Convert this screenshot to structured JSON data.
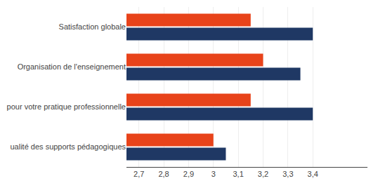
{
  "chart_data": {
    "type": "bar",
    "orientation": "horizontal",
    "categories": [
      "Satisfaction globale",
      "Organisation de l'enseignement",
      "pour votre pratique professionnelle",
      "ualité des supports pédagogiques"
    ],
    "series": [
      {
        "color": "#E8431A",
        "values": [
          3.15,
          3.2,
          3.15,
          3.0
        ]
      },
      {
        "color": "#1F3864",
        "values": [
          3.4,
          3.35,
          3.4,
          3.05
        ]
      }
    ],
    "xlim": [
      2.65,
      3.62
    ],
    "xticks": [
      {
        "value": 2.7,
        "label": "2,7"
      },
      {
        "value": 2.8,
        "label": "2,8"
      },
      {
        "value": 2.9,
        "label": "2,9"
      },
      3,
      {
        "value": 3.1,
        "label": "3,1"
      },
      {
        "value": 3.2,
        "label": "3,2"
      },
      {
        "value": 3.3,
        "label": "3,3"
      },
      {
        "value": 3.4,
        "label": "3,4"
      }
    ],
    "grid": true
  }
}
